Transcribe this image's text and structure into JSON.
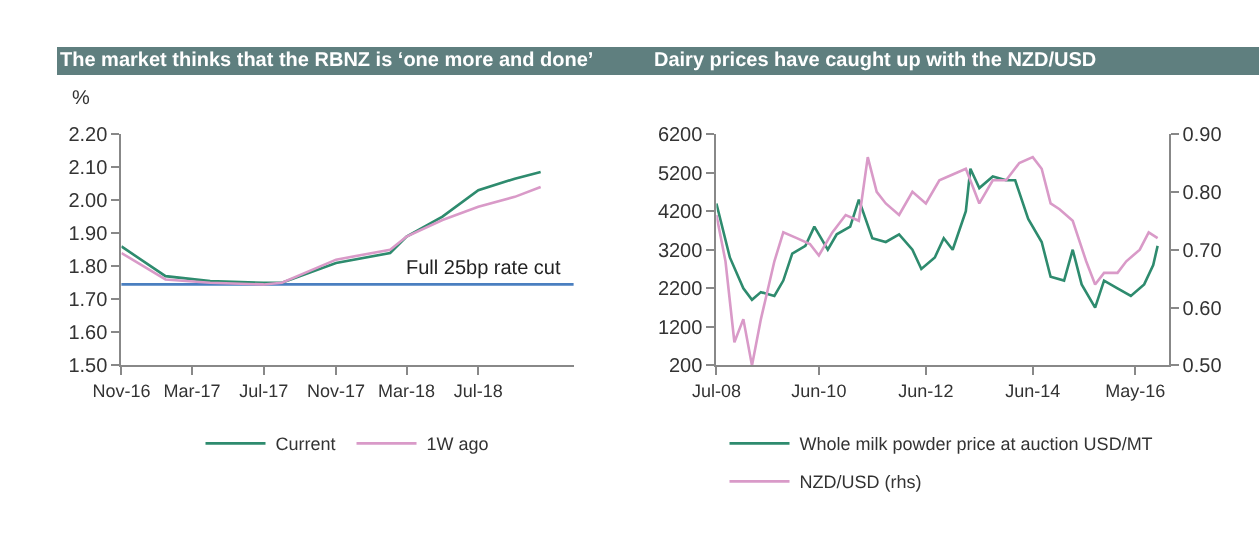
{
  "chart_data": [
    {
      "type": "line",
      "title": "The market thinks that the RBNZ is ‘one more and done’",
      "ylabel": "%",
      "legend": "bottom",
      "marker": "none",
      "line_style": "solid",
      "xlim": [
        "2016-11-01",
        "2018-12-10"
      ],
      "xticks": [
        {
          "value": "2016-11-01",
          "label": "Nov-16"
        },
        {
          "value": "2017-03-01",
          "label": "Mar-17"
        },
        {
          "value": "2017-07-01",
          "label": "Jul-17"
        },
        {
          "value": "2017-11-01",
          "label": "Nov-17"
        },
        {
          "value": "2018-03-01",
          "label": "Mar-18"
        },
        {
          "value": "2018-07-01",
          "label": "Jul-18"
        }
      ],
      "ylim": [
        1.5,
        2.2
      ],
      "yticks": [
        {
          "value": 1.5,
          "label": "1.50"
        },
        {
          "value": 1.6,
          "label": "1.60"
        },
        {
          "value": 1.7,
          "label": "1.70"
        },
        {
          "value": 1.8,
          "label": "1.80"
        },
        {
          "value": 1.9,
          "label": "1.90"
        },
        {
          "value": 2.0,
          "label": "2.00"
        },
        {
          "value": 2.1,
          "label": "2.10"
        },
        {
          "value": 2.2,
          "label": "2.20"
        }
      ],
      "x": [
        "2016-11-01",
        "2017-01-15",
        "2017-04-01",
        "2017-07-01",
        "2017-08-01",
        "2017-11-01",
        "2018-02-01",
        "2018-03-01",
        "2018-05-01",
        "2018-07-01",
        "2018-09-01",
        "2018-10-15"
      ],
      "series": [
        {
          "name": "Current",
          "color": "#2e8b6e",
          "values": [
            1.86,
            1.77,
            1.755,
            1.75,
            1.75,
            1.81,
            1.84,
            1.89,
            1.95,
            2.03,
            2.065,
            2.085
          ]
        },
        {
          "name": "1W ago",
          "color": "#d99ac8",
          "values": [
            1.84,
            1.76,
            1.75,
            1.745,
            1.75,
            1.82,
            1.85,
            1.89,
            1.94,
            1.98,
            2.01,
            2.04
          ]
        }
      ],
      "ref_lines": [
        {
          "axis": "y",
          "value": 1.745,
          "label": "Full 25bp rate cut",
          "color": "#4a7fc0"
        }
      ]
    },
    {
      "type": "line",
      "title": "Dairy prices have caught up with the NZD/USD",
      "legend": "bottom",
      "marker": "none",
      "line_style": "solid",
      "xlim": [
        "2008-07-01",
        "2016-12-15"
      ],
      "xticks": [
        {
          "value": "2008-07-01",
          "label": "Jul-08"
        },
        {
          "value": "2010-06-01",
          "label": "Jun-10"
        },
        {
          "value": "2012-06-01",
          "label": "Jun-12"
        },
        {
          "value": "2014-06-01",
          "label": "Jun-14"
        },
        {
          "value": "2016-05-01",
          "label": "May-16"
        }
      ],
      "ylim": [
        200,
        6200
      ],
      "yticks": [
        200,
        1200,
        2200,
        3200,
        4200,
        5200,
        6200
      ],
      "y2lim": [
        0.5,
        0.9
      ],
      "y2ticks": [
        {
          "value": 0.5,
          "label": "0.50"
        },
        {
          "value": 0.6,
          "label": "0.60"
        },
        {
          "value": 0.7,
          "label": "0.70"
        },
        {
          "value": 0.8,
          "label": "0.80"
        },
        {
          "value": 0.9,
          "label": "0.90"
        }
      ],
      "series": [
        {
          "name": "Whole milk powder price at auction USD/MT",
          "color": "#2e8b6e",
          "x": [
            "2008-07",
            "2008-10",
            "2009-01",
            "2009-03",
            "2009-05",
            "2009-08",
            "2009-10",
            "2009-12",
            "2010-03",
            "2010-05",
            "2010-08",
            "2010-10",
            "2011-01",
            "2011-03",
            "2011-06",
            "2011-09",
            "2011-12",
            "2012-03",
            "2012-05",
            "2012-08",
            "2012-10",
            "2012-12",
            "2013-03",
            "2013-04",
            "2013-06",
            "2013-09",
            "2013-12",
            "2014-02",
            "2014-05",
            "2014-08",
            "2014-10",
            "2015-01",
            "2015-03",
            "2015-05",
            "2015-08",
            "2015-10",
            "2016-01",
            "2016-04",
            "2016-07",
            "2016-09",
            "2016-10"
          ],
          "values": [
            4400,
            3000,
            2200,
            1900,
            2100,
            2000,
            2400,
            3100,
            3300,
            3800,
            3200,
            3600,
            3800,
            4500,
            3500,
            3400,
            3600,
            3200,
            2700,
            3000,
            3500,
            3200,
            4200,
            5300,
            4800,
            5100,
            5000,
            5000,
            4000,
            3400,
            2500,
            2400,
            3200,
            2300,
            1700,
            2400,
            2200,
            2000,
            2300,
            2800,
            3300
          ]
        },
        {
          "name": "NZD/USD (rhs)",
          "color": "#d99ac8",
          "axis": "y2",
          "x": [
            "2008-07",
            "2008-09",
            "2008-11",
            "2009-01",
            "2009-03",
            "2009-05",
            "2009-08",
            "2009-10",
            "2010-01",
            "2010-04",
            "2010-06",
            "2010-09",
            "2010-12",
            "2011-03",
            "2011-05",
            "2011-07",
            "2011-09",
            "2011-12",
            "2012-03",
            "2012-06",
            "2012-09",
            "2012-12",
            "2013-03",
            "2013-06",
            "2013-09",
            "2013-12",
            "2014-03",
            "2014-06",
            "2014-08",
            "2014-10",
            "2014-12",
            "2015-03",
            "2015-06",
            "2015-08",
            "2015-10",
            "2016-01",
            "2016-03",
            "2016-06",
            "2016-08",
            "2016-10"
          ],
          "values": [
            0.76,
            0.68,
            0.54,
            0.58,
            0.5,
            0.58,
            0.68,
            0.73,
            0.72,
            0.71,
            0.69,
            0.73,
            0.76,
            0.75,
            0.86,
            0.8,
            0.78,
            0.76,
            0.8,
            0.78,
            0.82,
            0.83,
            0.84,
            0.78,
            0.82,
            0.82,
            0.85,
            0.86,
            0.84,
            0.78,
            0.77,
            0.75,
            0.68,
            0.64,
            0.66,
            0.66,
            0.68,
            0.7,
            0.73,
            0.72
          ]
        }
      ]
    }
  ]
}
